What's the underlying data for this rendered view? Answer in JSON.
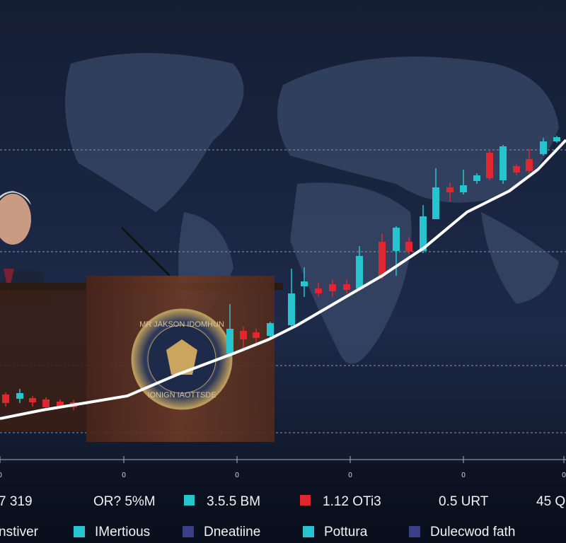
{
  "seal": {
    "top": "MR JAKSON IDOMHUN",
    "bottom": "IONIGN IAOTTSDE"
  },
  "axis": {
    "ticks": [
      "0",
      "0",
      "0",
      "0",
      "0",
      "0"
    ]
  },
  "stats": [
    "7 319",
    "OR? 5%M",
    "3.5.5 BM",
    "1.12 OTi3",
    "0.5 URT",
    "45 Q"
  ],
  "legend": [
    "nstiver",
    "IMertious",
    "Dneatiine",
    "Pottura",
    "Dulecwod fath"
  ]
}
